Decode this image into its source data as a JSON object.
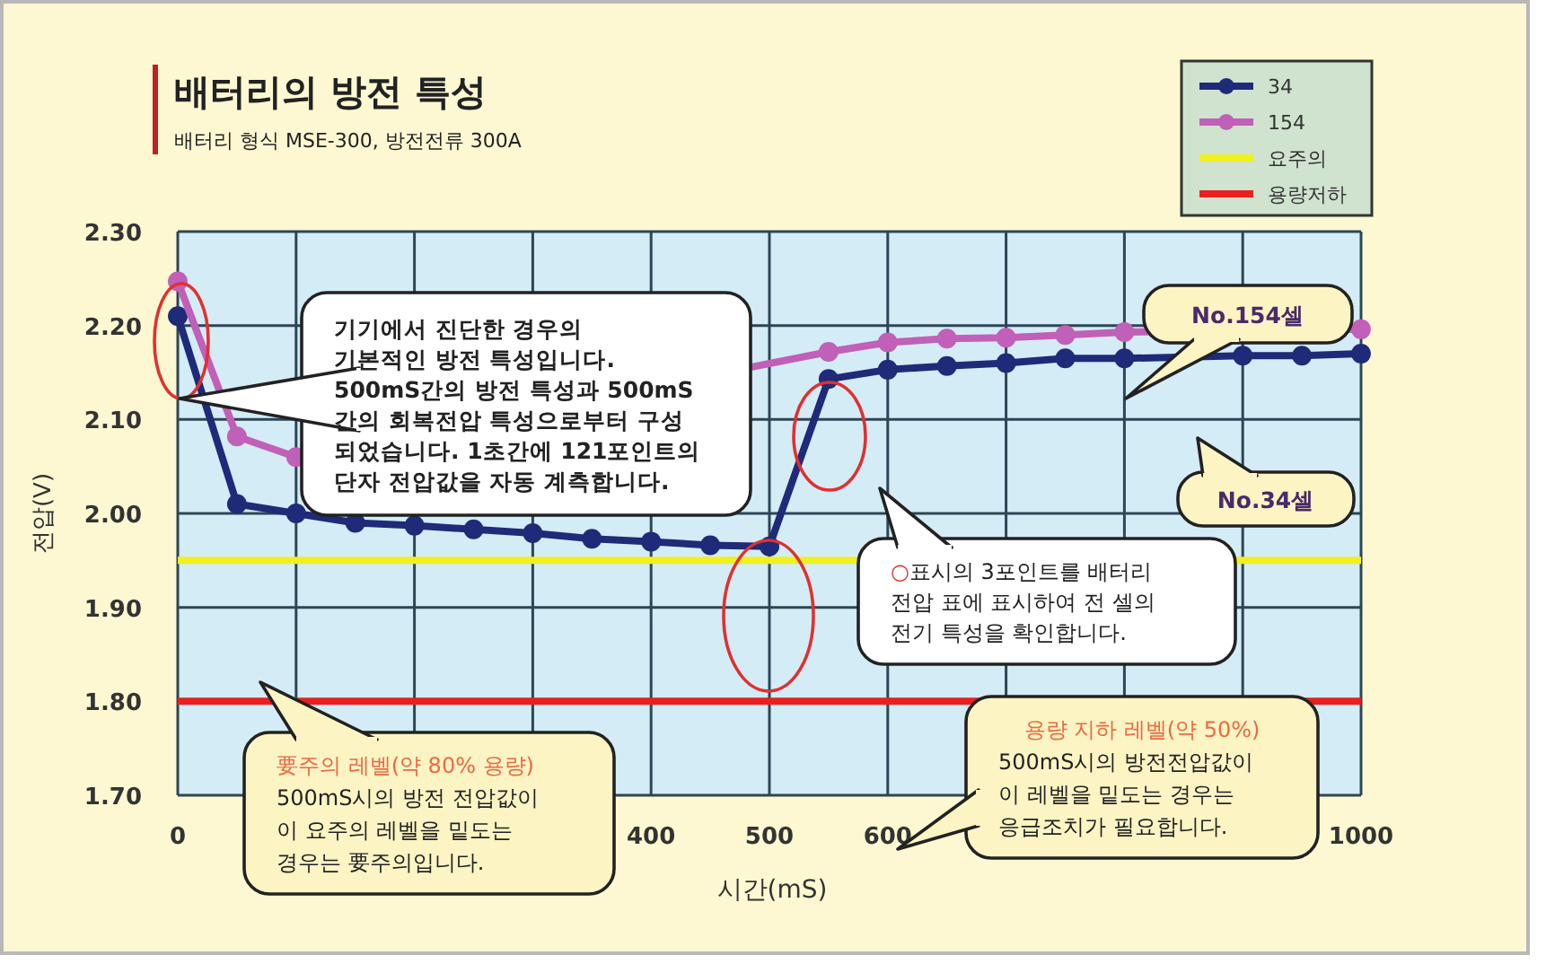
{
  "chart_data": {
    "type": "line",
    "title": "배터리의 방전 특성",
    "subtitle": "배터리 형식 MSE-300, 방전전류 300A",
    "xlabel": "시간(mS)",
    "ylabel": "전압(V)",
    "series": [
      {
        "name": "34",
        "color": "#1f2a78",
        "x": [
          0,
          50,
          100,
          150,
          200,
          250,
          300,
          350,
          400,
          450,
          500,
          550,
          600,
          650,
          700,
          750,
          800,
          900,
          950,
          1000
        ],
        "values": [
          2.21,
          2.01,
          2.0,
          1.99,
          1.987,
          1.983,
          1.979,
          1.973,
          1.97,
          1.966,
          1.965,
          2.143,
          2.153,
          2.157,
          2.16,
          2.165,
          2.165,
          2.168,
          2.168,
          2.17
        ]
      },
      {
        "name": "154",
        "color": "#c060b8",
        "x": [
          0,
          50,
          100,
          550,
          600,
          650,
          700,
          750,
          800,
          1000
        ],
        "values": [
          2.247,
          2.082,
          2.06,
          2.172,
          2.182,
          2.186,
          2.187,
          2.19,
          2.193,
          2.196
        ]
      }
    ],
    "xlim": [
      0,
      1000
    ],
    "ylim": [
      1.7,
      2.3
    ],
    "xticks": [
      0,
      {
        "value": 100,
        "label": null
      },
      {
        "value": 200,
        "label": null
      },
      {
        "value": 300,
        "label": null
      },
      400,
      500,
      600,
      {
        "value": 700,
        "label": null
      },
      {
        "value": 800,
        "label": null
      },
      {
        "value": 900,
        "label": null
      },
      1000
    ],
    "yticks": [
      {
        "value": 1.7,
        "label": "1.70"
      },
      {
        "value": 1.8,
        "label": "1.80"
      },
      {
        "value": 1.9,
        "label": "1.90"
      },
      {
        "value": 2.0,
        "label": "2.00"
      },
      {
        "value": 2.1,
        "label": "2.10"
      },
      {
        "value": 2.2,
        "label": "2.20"
      },
      {
        "value": 2.3,
        "label": "2.30"
      }
    ],
    "ref_lines": [
      {
        "axis": "y",
        "value": 1.95,
        "label": "요주의",
        "color": "#f0f020"
      },
      {
        "axis": "y",
        "value": 1.8,
        "label": "용량저하",
        "color": "#e82020"
      }
    ],
    "grid": true,
    "legend": "top right",
    "marker": "circle",
    "line_style": "solid",
    "annotations": [
      "기기에서 진단한 경우의\n기본적인 방전 특성입니다.\n500mS간의 방전 특성과 500mS\n간의 회복전압 특성으로부터 구성\n되었습니다. 1초간에 121포인트의\n단자 전압값을 자동 계측합니다.",
      "No.154셀",
      "No.34셀",
      "○표시의 3포인트를 배터리\n전압 표에 표시하여 전 셀의\n전기 특성을 확인합니다.",
      "要주의 레벨(약 80% 용량)\n500mS시의 방전 전압값이\n이 요주의 레벨을 밑도는\n경우는 要주의입니다.",
      "용량 지하 레벨(약 50%)\n500mS시의 방전전압값이\n이 레벨을 밑도는 경우는\n응급조치가 필요합니다."
    ]
  }
}
